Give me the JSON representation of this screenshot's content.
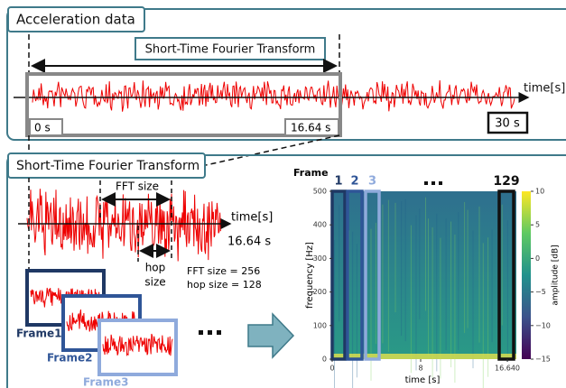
{
  "top": {
    "title": "Acceleration data",
    "stft_label": "Short-Time Fourier Transform",
    "axis_label": "time[s]",
    "start": "0 s",
    "end": "16.64 s",
    "total": "30 s"
  },
  "bottom": {
    "title": "Short-Time Fourier Transform",
    "fft_size": "FFT size",
    "axis_label": "time[s]",
    "end": "16.64 s",
    "hop_label": [
      "hop",
      "size"
    ],
    "params": [
      "FFT size = 256",
      "hop size = 128"
    ],
    "frames": [
      "Frame1",
      "Frame2",
      "Frame3"
    ]
  },
  "spectrogram": {
    "frame_label": "Frame",
    "frame_numbers": [
      "1",
      "2",
      "3",
      "129"
    ],
    "y_label": "frequency [Hz]",
    "x_label": "time [s]",
    "y_ticks": [
      "0",
      "100",
      "200",
      "300",
      "400",
      "500"
    ],
    "x_ticks": [
      "0",
      "8",
      "16.640"
    ],
    "colorbar_label": "amplitude [dB]",
    "colorbar_ticks": [
      "10",
      "5",
      "0",
      "−5",
      "−10",
      "−15"
    ]
  }
}
